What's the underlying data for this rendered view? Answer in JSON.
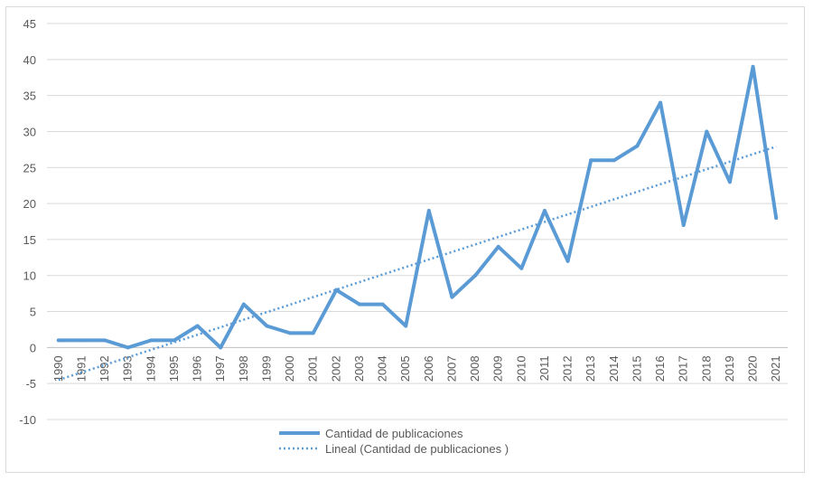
{
  "chart_data": {
    "type": "line",
    "title": "",
    "xlabel": "",
    "ylabel": "",
    "categories": [
      "1990",
      "1991",
      "1992",
      "1993",
      "1994",
      "1995",
      "1996",
      "1997",
      "1998",
      "1999",
      "2000",
      "2001",
      "2002",
      "2003",
      "2004",
      "2005",
      "2006",
      "2007",
      "2008",
      "2009",
      "2010",
      "2011",
      "2012",
      "2013",
      "2014",
      "2015",
      "2016",
      "2017",
      "2018",
      "2019",
      "2020",
      "2021"
    ],
    "series": [
      {
        "name": "Cantidad de publicaciones",
        "values": [
          1,
          1,
          1,
          0,
          1,
          1,
          3,
          0,
          6,
          3,
          2,
          2,
          8,
          6,
          6,
          3,
          19,
          7,
          10,
          14,
          11,
          19,
          12,
          26,
          26,
          28,
          34,
          17,
          30,
          23,
          39,
          18
        ],
        "color": "#5b9bd5",
        "style": "solid"
      },
      {
        "name": "Lineal (Cantidad de publicaciones )",
        "trendline": "linear",
        "start": -4.5,
        "end": 27.9,
        "color": "#5b9bd5",
        "style": "dotted"
      }
    ],
    "ylim": [
      -10,
      45
    ],
    "yticks": [
      "45",
      "40",
      "35",
      "30",
      "25",
      "20",
      "15",
      "10",
      "5",
      "0",
      "-5",
      "-10"
    ],
    "grid": true,
    "legend_position": "bottom"
  }
}
